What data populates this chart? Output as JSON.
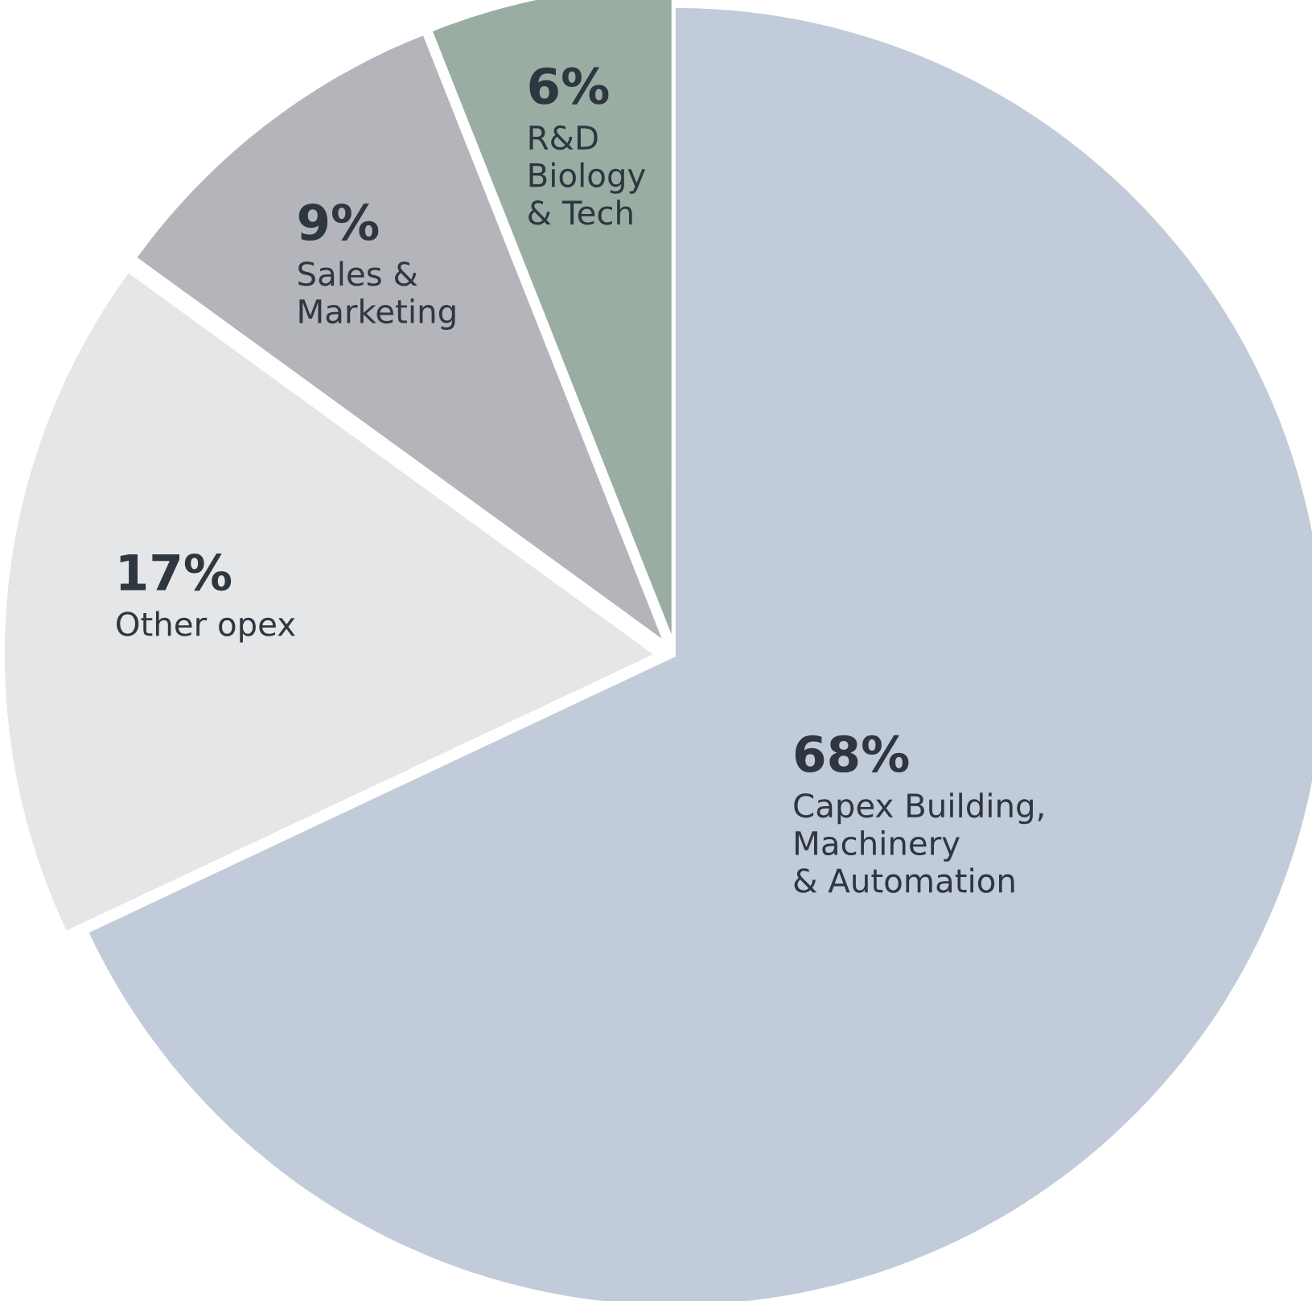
{
  "chart_data": {
    "type": "pie",
    "categories": [
      "Capex Building,\nMachinery\n& Automation",
      "Other opex",
      "Sales &\nMarketing",
      "R&D\nBiology\n& Tech"
    ],
    "values": [
      68,
      17,
      9,
      6
    ],
    "value_labels": [
      "68%",
      "17%",
      "9%",
      "6%"
    ],
    "colors": [
      "#c1cbd9",
      "#e5e6e8",
      "#b4b5ba",
      "#9aada3"
    ]
  }
}
